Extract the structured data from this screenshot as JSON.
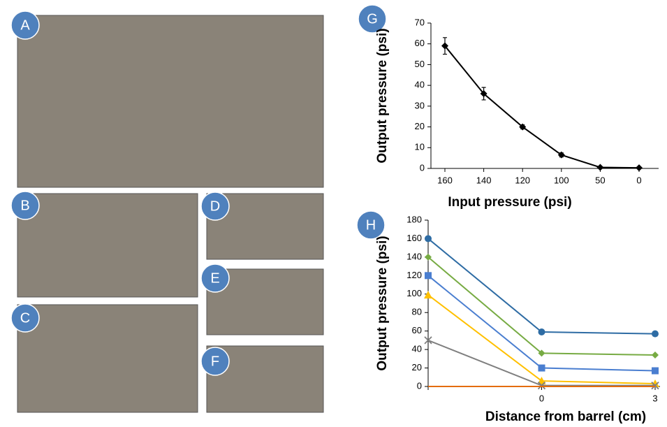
{
  "panels": [
    "A",
    "B",
    "C",
    "D",
    "E",
    "F",
    "G",
    "H"
  ],
  "chart_data": [
    {
      "type": "line",
      "xlabel": "Input pressure (psi)",
      "ylabel": "Output pressure (psi)",
      "categories": [
        "160",
        "140",
        "120",
        "100",
        "50",
        "0"
      ],
      "values": [
        59,
        36,
        20,
        6.5,
        0.5,
        0.3
      ],
      "errors": [
        4,
        3,
        1,
        1,
        0,
        0
      ],
      "color": "#000000",
      "marker": "diamond",
      "ylim": [
        0,
        70
      ],
      "yticks": [
        0,
        10,
        20,
        30,
        40,
        50,
        60,
        70
      ]
    },
    {
      "type": "line",
      "xlabel": "Distance  from barrel (cm)",
      "ylabel": "Output pressure (psi)",
      "categories": [
        null,
        "0",
        "3"
      ],
      "series": [
        {
          "color": "#2e6ca4",
          "marker": "circle",
          "values": [
            160,
            59,
            57
          ]
        },
        {
          "color": "#77ab43",
          "marker": "diamond",
          "values": [
            140,
            36,
            34
          ]
        },
        {
          "color": "#4a7ed0",
          "marker": "square",
          "values": [
            120,
            20,
            17
          ]
        },
        {
          "color": "#ffc000",
          "marker": "triangle",
          "values": [
            99,
            6,
            3
          ]
        },
        {
          "color": "#7f7f7f",
          "marker": "x",
          "values": [
            50,
            1,
            1
          ]
        },
        {
          "color": "#e46c0a",
          "marker": "none",
          "values": [
            0,
            0,
            0
          ]
        }
      ],
      "ylim": [
        0,
        180
      ],
      "yticks": [
        0,
        20,
        40,
        60,
        80,
        100,
        120,
        140,
        160,
        180
      ]
    }
  ]
}
